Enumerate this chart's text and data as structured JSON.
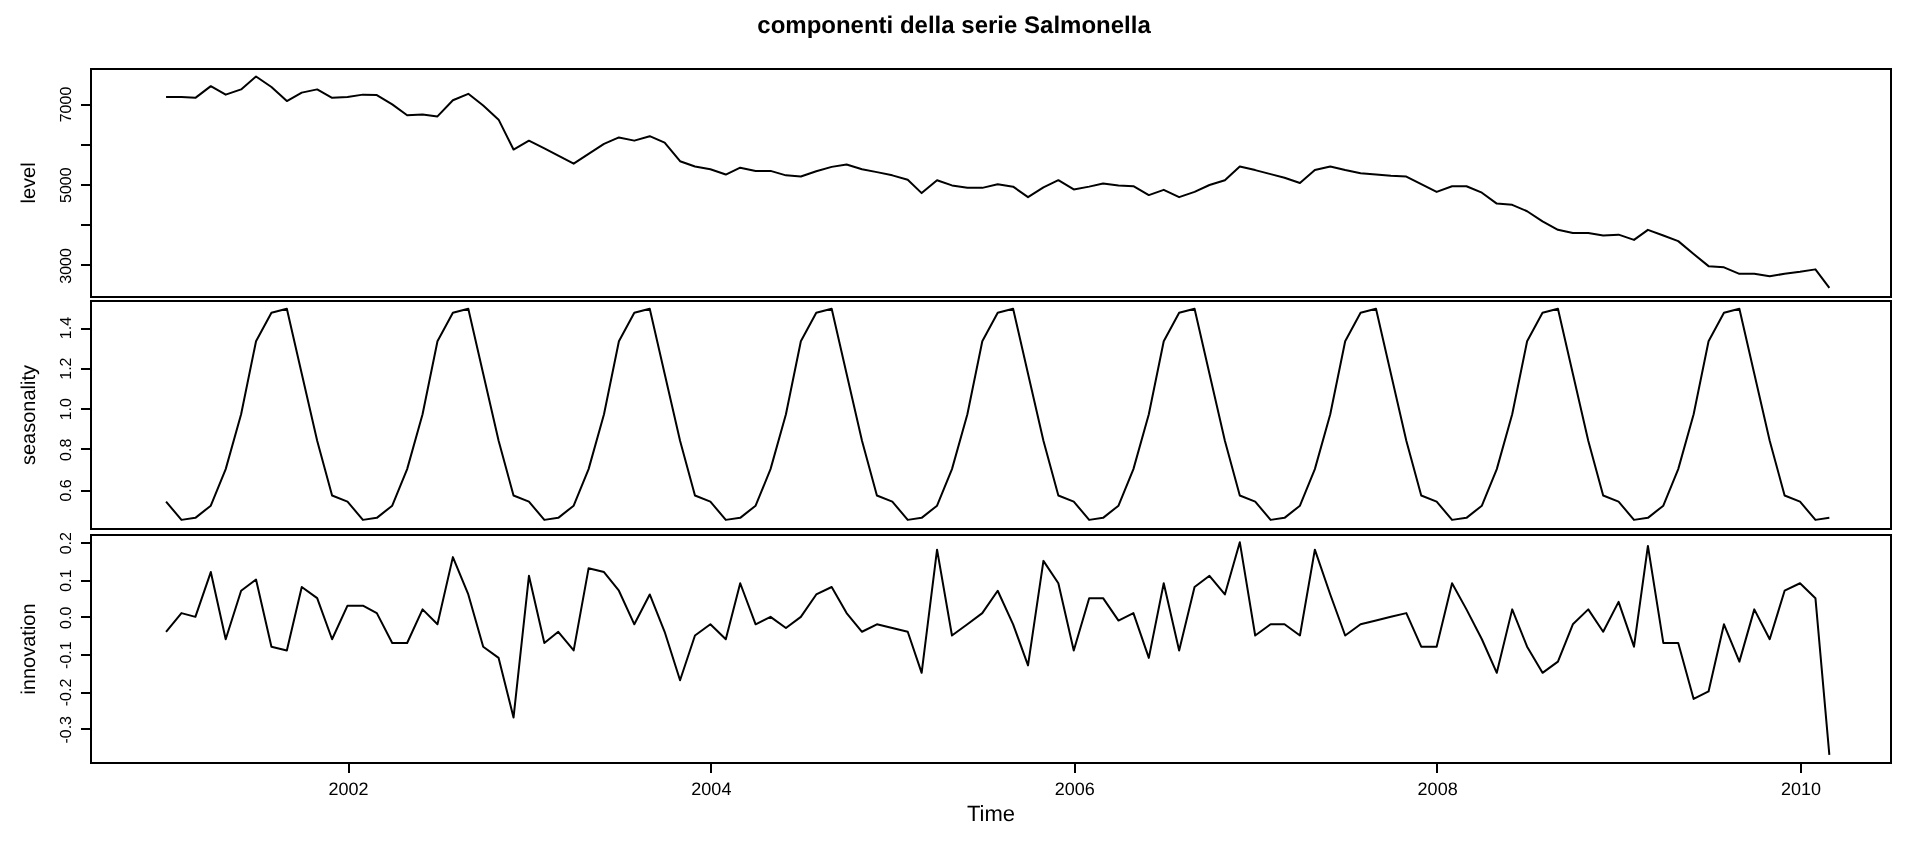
{
  "chart_data": [
    {
      "type": "line",
      "title": "componenti della serie Salmonella",
      "ylabel": "level",
      "tick_labels": "y",
      "xlim": [
        "2000-08",
        "2010-07"
      ],
      "ylim": [
        2230,
        7880
      ],
      "yticks": [
        3000,
        {
          "value": 4000,
          "label": null
        },
        5000,
        {
          "value": 6000,
          "label": null
        },
        7000
      ],
      "x": [
        "2001-01",
        "2001-02",
        "2001-03",
        "2001-04",
        "2001-05",
        "2001-06",
        "2001-07",
        "2001-08",
        "2001-09",
        "2001-10",
        "2001-11",
        "2001-12",
        "2002-01",
        "2002-02",
        "2002-03",
        "2002-04",
        "2002-05",
        "2002-06",
        "2002-07",
        "2002-08",
        "2002-09",
        "2002-10",
        "2002-11",
        "2002-12",
        "2003-01",
        "2003-02",
        "2003-03",
        "2003-04",
        "2003-05",
        "2003-06",
        "2003-07",
        "2003-08",
        "2003-09",
        "2003-10",
        "2003-11",
        "2003-12",
        "2004-01",
        "2004-02",
        "2004-03",
        "2004-04",
        "2004-05",
        "2004-06",
        "2004-07",
        "2004-08",
        "2004-09",
        "2004-10",
        "2004-11",
        "2004-12",
        "2005-01",
        "2005-02",
        "2005-03",
        "2005-04",
        "2005-05",
        "2005-06",
        "2005-07",
        "2005-08",
        "2005-09",
        "2005-10",
        "2005-11",
        "2005-12",
        "2006-01",
        "2006-02",
        "2006-03",
        "2006-04",
        "2006-05",
        "2006-06",
        "2006-07",
        "2006-08",
        "2006-09",
        "2006-10",
        "2006-11",
        "2006-12",
        "2007-01",
        "2007-02",
        "2007-03",
        "2007-04",
        "2007-05",
        "2007-06",
        "2007-07",
        "2007-08",
        "2007-09",
        "2007-10",
        "2007-11",
        "2007-12",
        "2008-01",
        "2008-02",
        "2008-03",
        "2008-04",
        "2008-05",
        "2008-06",
        "2008-07",
        "2008-08",
        "2008-09",
        "2008-10",
        "2008-11",
        "2008-12",
        "2009-01",
        "2009-02",
        "2009-03",
        "2009-04",
        "2009-05",
        "2009-06",
        "2009-07",
        "2009-08",
        "2009-09",
        "2009-10",
        "2009-11",
        "2009-12",
        "2010-01",
        "2010-02",
        "2010-03"
      ],
      "series": [
        {
          "color": "#000000",
          "values": [
            7160,
            7160,
            7140,
            7430,
            7220,
            7350,
            7670,
            7410,
            7060,
            7270,
            7350,
            7140,
            7160,
            7220,
            7210,
            6980,
            6710,
            6730,
            6680,
            7080,
            7240,
            6950,
            6600,
            5860,
            6080,
            5890,
            5710,
            5510,
            5750,
            6000,
            6160,
            6080,
            6190,
            6030,
            5570,
            5440,
            5370,
            5240,
            5410,
            5330,
            5330,
            5220,
            5190,
            5320,
            5430,
            5490,
            5370,
            5300,
            5220,
            5110,
            4780,
            5100,
            4970,
            4910,
            4910,
            5000,
            4940,
            4680,
            4920,
            5100,
            4870,
            4940,
            5020,
            4970,
            4950,
            4730,
            4860,
            4680,
            4810,
            4980,
            5100,
            5440,
            5350,
            5250,
            5160,
            5030,
            5350,
            5440,
            5350,
            5270,
            5240,
            5210,
            5190,
            5000,
            4810,
            4950,
            4950,
            4790,
            4520,
            4490,
            4330,
            4080,
            3870,
            3790,
            3790,
            3730,
            3750,
            3620,
            3870,
            3730,
            3590,
            3270,
            2970,
            2940,
            2780,
            2780,
            2720,
            2780,
            2830,
            2890,
            2430
          ]
        }
      ]
    },
    {
      "type": "line",
      "ylabel": "seasonality",
      "tick_labels": "y",
      "xlim": [
        "2000-08",
        "2010-07"
      ],
      "ylim": [
        0.41,
        1.533
      ],
      "yticks": [
        0.6,
        0.8,
        {
          "value": 1.0,
          "label": "1.0"
        },
        1.2,
        1.4
      ],
      "x": [
        "2001-01",
        "2001-02",
        "2001-03",
        "2001-04",
        "2001-05",
        "2001-06",
        "2001-07",
        "2001-08",
        "2001-09",
        "2001-10",
        "2001-11",
        "2001-12",
        "2002-01",
        "2002-02",
        "2002-03",
        "2002-04",
        "2002-05",
        "2002-06",
        "2002-07",
        "2002-08",
        "2002-09",
        "2002-10",
        "2002-11",
        "2002-12",
        "2003-01",
        "2003-02",
        "2003-03",
        "2003-04",
        "2003-05",
        "2003-06",
        "2003-07",
        "2003-08",
        "2003-09",
        "2003-10",
        "2003-11",
        "2003-12",
        "2004-01",
        "2004-02",
        "2004-03",
        "2004-04",
        "2004-05",
        "2004-06",
        "2004-07",
        "2004-08",
        "2004-09",
        "2004-10",
        "2004-11",
        "2004-12",
        "2005-01",
        "2005-02",
        "2005-03",
        "2005-04",
        "2005-05",
        "2005-06",
        "2005-07",
        "2005-08",
        "2005-09",
        "2005-10",
        "2005-11",
        "2005-12",
        "2006-01",
        "2006-02",
        "2006-03",
        "2006-04",
        "2006-05",
        "2006-06",
        "2006-07",
        "2006-08",
        "2006-09",
        "2006-10",
        "2006-11",
        "2006-12",
        "2007-01",
        "2007-02",
        "2007-03",
        "2007-04",
        "2007-05",
        "2007-06",
        "2007-07",
        "2007-08",
        "2007-09",
        "2007-10",
        "2007-11",
        "2007-12",
        "2008-01",
        "2008-02",
        "2008-03",
        "2008-04",
        "2008-05",
        "2008-06",
        "2008-07",
        "2008-08",
        "2008-09",
        "2008-10",
        "2008-11",
        "2008-12",
        "2009-01",
        "2009-02",
        "2009-03",
        "2009-04",
        "2009-05",
        "2009-06",
        "2009-07",
        "2009-08",
        "2009-09",
        "2009-10",
        "2009-11",
        "2009-12",
        "2010-01",
        "2010-02",
        "2010-03"
      ],
      "series": [
        {
          "color": "#000000",
          "values": [
            0.54,
            0.45,
            0.46,
            0.52,
            0.7,
            0.97,
            1.33,
            1.47,
            1.49,
            1.17,
            0.84,
            0.57,
            0.54,
            0.45,
            0.46,
            0.52,
            0.7,
            0.97,
            1.33,
            1.47,
            1.49,
            1.17,
            0.84,
            0.57,
            0.54,
            0.45,
            0.46,
            0.52,
            0.7,
            0.97,
            1.33,
            1.47,
            1.49,
            1.17,
            0.84,
            0.57,
            0.54,
            0.45,
            0.46,
            0.52,
            0.7,
            0.97,
            1.33,
            1.47,
            1.49,
            1.17,
            0.84,
            0.57,
            0.54,
            0.45,
            0.46,
            0.52,
            0.7,
            0.97,
            1.33,
            1.47,
            1.49,
            1.17,
            0.84,
            0.57,
            0.54,
            0.45,
            0.46,
            0.52,
            0.7,
            0.97,
            1.33,
            1.47,
            1.49,
            1.17,
            0.84,
            0.57,
            0.54,
            0.45,
            0.46,
            0.52,
            0.7,
            0.97,
            1.33,
            1.47,
            1.49,
            1.17,
            0.84,
            0.57,
            0.54,
            0.45,
            0.46,
            0.52,
            0.7,
            0.97,
            1.33,
            1.47,
            1.49,
            1.17,
            0.84,
            0.57,
            0.54,
            0.45,
            0.46,
            0.52,
            0.7,
            0.97,
            1.33,
            1.47,
            1.49,
            1.17,
            0.84,
            0.57,
            0.54,
            0.45,
            0.46
          ]
        }
      ]
    },
    {
      "type": "line",
      "xlabel": "Time",
      "ylabel": "innovation",
      "xlim": [
        "2000-08",
        "2010-07"
      ],
      "xticks": [
        "2002",
        "2004",
        "2006",
        "2008",
        "2010"
      ],
      "ylim": [
        -0.389,
        0.222
      ],
      "yticks": [
        -0.3,
        -0.2,
        -0.1,
        {
          "value": 0,
          "label": "0.0"
        },
        0.1,
        0.2
      ],
      "x": [
        "2001-01",
        "2001-02",
        "2001-03",
        "2001-04",
        "2001-05",
        "2001-06",
        "2001-07",
        "2001-08",
        "2001-09",
        "2001-10",
        "2001-11",
        "2001-12",
        "2002-01",
        "2002-02",
        "2002-03",
        "2002-04",
        "2002-05",
        "2002-06",
        "2002-07",
        "2002-08",
        "2002-09",
        "2002-10",
        "2002-11",
        "2002-12",
        "2003-01",
        "2003-02",
        "2003-03",
        "2003-04",
        "2003-05",
        "2003-06",
        "2003-07",
        "2003-08",
        "2003-09",
        "2003-10",
        "2003-11",
        "2003-12",
        "2004-01",
        "2004-02",
        "2004-03",
        "2004-04",
        "2004-05",
        "2004-06",
        "2004-07",
        "2004-08",
        "2004-09",
        "2004-10",
        "2004-11",
        "2004-12",
        "2005-01",
        "2005-02",
        "2005-03",
        "2005-04",
        "2005-05",
        "2005-06",
        "2005-07",
        "2005-08",
        "2005-09",
        "2005-10",
        "2005-11",
        "2005-12",
        "2006-01",
        "2006-02",
        "2006-03",
        "2006-04",
        "2006-05",
        "2006-06",
        "2006-07",
        "2006-08",
        "2006-09",
        "2006-10",
        "2006-11",
        "2006-12",
        "2007-01",
        "2007-02",
        "2007-03",
        "2007-04",
        "2007-05",
        "2007-06",
        "2007-07",
        "2007-08",
        "2007-09",
        "2007-10",
        "2007-11",
        "2007-12",
        "2008-01",
        "2008-02",
        "2008-03",
        "2008-04",
        "2008-05",
        "2008-06",
        "2008-07",
        "2008-08",
        "2008-09",
        "2008-10",
        "2008-11",
        "2008-12",
        "2009-01",
        "2009-02",
        "2009-03",
        "2009-04",
        "2009-05",
        "2009-06",
        "2009-07",
        "2009-08",
        "2009-09",
        "2009-10",
        "2009-11",
        "2009-12",
        "2010-01",
        "2010-02",
        "2010-03"
      ],
      "series": [
        {
          "color": "#000000",
          "values": [
            -0.04,
            0.01,
            0,
            0.12,
            -0.06,
            0.07,
            0.1,
            -0.08,
            -0.09,
            0.08,
            0.05,
            -0.06,
            0.03,
            0.03,
            0.01,
            -0.07,
            -0.07,
            0.02,
            -0.02,
            0.16,
            0.06,
            -0.08,
            -0.11,
            -0.27,
            0.11,
            -0.07,
            -0.04,
            -0.09,
            0.13,
            0.12,
            0.07,
            -0.02,
            0.06,
            -0.04,
            -0.17,
            -0.05,
            -0.02,
            -0.06,
            0.09,
            -0.02,
            0,
            -0.03,
            0,
            0.06,
            0.08,
            0.01,
            -0.04,
            -0.02,
            -0.03,
            -0.04,
            -0.15,
            0.18,
            -0.05,
            -0.02,
            0.01,
            0.07,
            -0.02,
            -0.13,
            0.15,
            0.09,
            -0.09,
            0.05,
            0.05,
            -0.01,
            0.01,
            -0.11,
            0.09,
            -0.09,
            0.08,
            0.11,
            0.06,
            0.2,
            -0.05,
            -0.02,
            -0.02,
            -0.05,
            0.18,
            0.06,
            -0.05,
            -0.02,
            -0.01,
            0,
            0.01,
            -0.08,
            -0.08,
            0.09,
            0.02,
            -0.06,
            -0.15,
            0.02,
            -0.08,
            -0.15,
            -0.12,
            -0.02,
            0.02,
            -0.04,
            0.04,
            -0.08,
            0.19,
            -0.07,
            -0.07,
            -0.22,
            -0.2,
            -0.02,
            -0.12,
            0.02,
            -0.06,
            0.07,
            0.09,
            0.05,
            -0.37
          ]
        }
      ]
    }
  ]
}
